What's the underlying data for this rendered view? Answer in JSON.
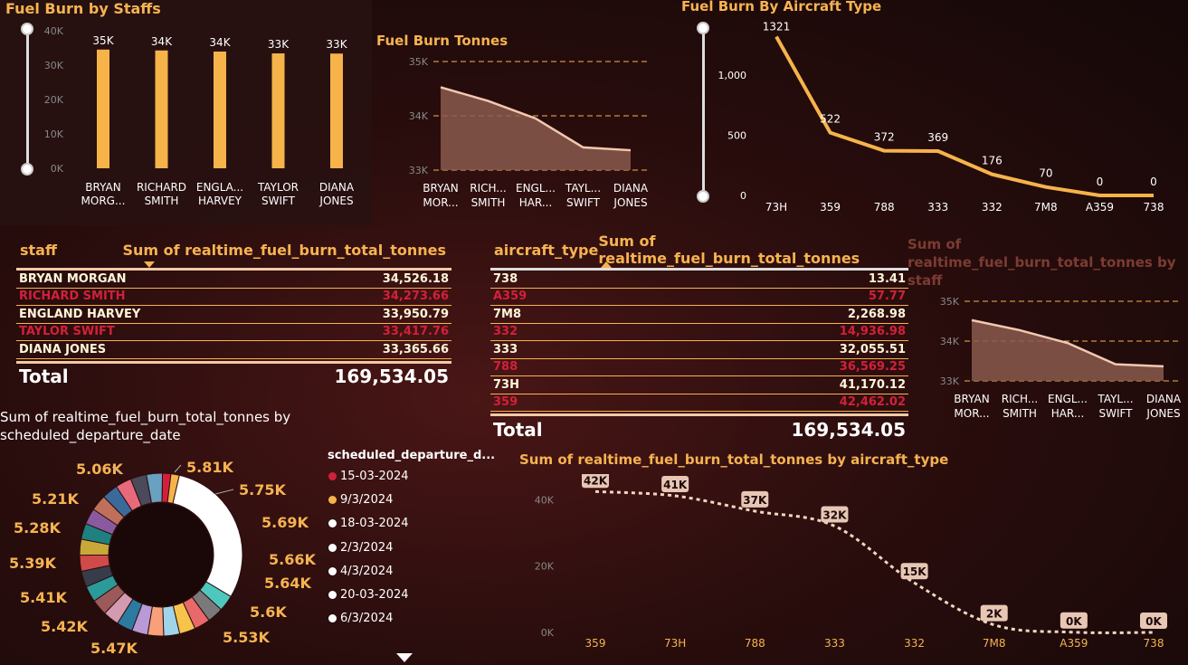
{
  "staff_chart": {
    "title": "Fuel Burn by Staffs",
    "yaxis_ticks": [
      "40K",
      "30K",
      "20K",
      "10K",
      "0K"
    ],
    "chart_data": {
      "type": "bar",
      "title": "Fuel Burn by Staffs",
      "categories": [
        "BRYAN MORG...",
        "RICHARD SMITH",
        "ENGLA... HARVEY",
        "TAYLOR SWIFT",
        "DIANA JONES"
      ],
      "values": [
        34526.18,
        34273.66,
        33950.79,
        33417.76,
        33365.66
      ],
      "data_labels": [
        "35K",
        "34K",
        "34K",
        "33K",
        "33K"
      ],
      "ylim": [
        0,
        40000
      ],
      "colors": [
        "#f6b34a"
      ]
    },
    "category_lines": [
      [
        "BRYAN",
        "MORG..."
      ],
      [
        "RICHARD",
        "SMITH"
      ],
      [
        "ENGLA...",
        "HARVEY"
      ],
      [
        "TAYLOR",
        "SWIFT"
      ],
      [
        "DIANA",
        "JONES"
      ]
    ]
  },
  "tonnes_chart": {
    "title": "Fuel Burn Tonnes",
    "yaxis_ticks": [
      "35K",
      "34K",
      "33K"
    ],
    "chart_data": {
      "type": "area",
      "title": "Fuel Burn Tonnes",
      "categories": [
        "BRYAN MOR...",
        "RICH... SMITH",
        "ENGL... HAR...",
        "TAYL... SWIFT",
        "DIANA JONES"
      ],
      "values": [
        34526.18,
        34273.66,
        33950.79,
        33417.76,
        33365.66
      ],
      "ylim": [
        33000,
        35000
      ]
    },
    "category_lines": [
      [
        "BRYAN",
        "MOR..."
      ],
      [
        "RICH...",
        "SMITH"
      ],
      [
        "ENGL...",
        "HAR..."
      ],
      [
        "TAYL...",
        "SWIFT"
      ],
      [
        "DIANA",
        "JONES"
      ]
    ]
  },
  "aircraft_chart": {
    "title": "Fuel Burn By Aircraft Type",
    "yaxis_ticks": [
      "1,000",
      "500",
      "0"
    ],
    "chart_data": {
      "type": "line",
      "title": "Fuel Burn By Aircraft Type",
      "categories": [
        "73H",
        "359",
        "788",
        "333",
        "332",
        "7M8",
        "A359",
        "738"
      ],
      "values": [
        1321,
        522,
        372,
        369,
        176,
        70,
        0,
        0
      ],
      "data_labels": [
        "1321",
        "522",
        "372",
        "369",
        "176",
        "70",
        "0",
        "0"
      ],
      "ylim": [
        0,
        1400
      ]
    }
  },
  "staff_table": {
    "col1": "staff",
    "col2": "Sum of realtime_fuel_burn_total_tonnes",
    "rows": [
      {
        "name": "BRYAN MORGAN",
        "value": "34,526.18"
      },
      {
        "name": "RICHARD SMITH",
        "value": "34,273.66"
      },
      {
        "name": "ENGLAND HARVEY",
        "value": "33,950.79"
      },
      {
        "name": "TAYLOR SWIFT",
        "value": "33,417.76"
      },
      {
        "name": "DIANA JONES",
        "value": "33,365.66"
      }
    ],
    "total_label": "Total",
    "total_value": "169,534.05"
  },
  "aircraft_table": {
    "col1": "aircraft_type",
    "col2": "Sum of realtime_fuel_burn_total_tonnes",
    "rows": [
      {
        "name": "738",
        "value": "13.41"
      },
      {
        "name": "A359",
        "value": "57.77"
      },
      {
        "name": "7M8",
        "value": "2,268.98"
      },
      {
        "name": "332",
        "value": "14,936.98"
      },
      {
        "name": "333",
        "value": "32,055.51"
      },
      {
        "name": "788",
        "value": "36,569.25"
      },
      {
        "name": "73H",
        "value": "41,170.12"
      },
      {
        "name": "359",
        "value": "42,462.02"
      }
    ],
    "total_label": "Total",
    "total_value": "169,534.05"
  },
  "staff_area_chart": {
    "title": "Sum of realtime_fuel_burn_total_tonnes by staff",
    "title_lines": [
      "Sum of",
      "realtime_fuel_burn_total_tonnes by",
      "staff"
    ],
    "yaxis_ticks": [
      "35K",
      "34K",
      "33K"
    ],
    "chart_data": {
      "type": "area",
      "title": "Sum of realtime_fuel_burn_total_tonnes by staff",
      "categories": [
        "BRYAN MOR...",
        "RICH... SMITH",
        "ENGL... HAR...",
        "TAYL... SWIFT",
        "DIANA JONES"
      ],
      "values": [
        34526.18,
        34273.66,
        33950.79,
        33417.76,
        33365.66
      ],
      "ylim": [
        33000,
        35000
      ]
    },
    "category_lines": [
      [
        "BRYAN",
        "MOR..."
      ],
      [
        "RICH...",
        "SMITH"
      ],
      [
        "ENGL...",
        "HAR..."
      ],
      [
        "TAYL...",
        "SWIFT"
      ],
      [
        "DIANA",
        "JONES"
      ]
    ]
  },
  "donut_chart": {
    "title_lines": [
      "Sum of realtime_fuel_burn_total_tonnes by",
      "scheduled_departure_date"
    ],
    "legend_title": "scheduled_departure_d...",
    "legend": [
      {
        "label": "15-03-2024",
        "color": "#d3203a"
      },
      {
        "label": "9/3/2024",
        "color": "#f6b34a"
      },
      {
        "label": "18-03-2024",
        "color": "#ffffff"
      },
      {
        "label": "2/3/2024",
        "color": "#ffffff"
      },
      {
        "label": "4/3/2024",
        "color": "#ffffff"
      },
      {
        "label": "20-03-2024",
        "color": "#ffffff"
      },
      {
        "label": "6/3/2024",
        "color": "#ffffff"
      }
    ],
    "labels_right": [
      "5.81K",
      "5.75K",
      "5.69K",
      "5.66K",
      "5.64K",
      "5.6K",
      "5.53K"
    ],
    "labels_left": [
      "5.06K",
      "5.21K",
      "5.28K",
      "5.39K",
      "5.41K",
      "5.42K",
      "5.47K"
    ],
    "chart_data": {
      "type": "pie",
      "title": "Sum of realtime_fuel_burn_total_tonnes by scheduled_departure_date",
      "values_shown": [
        5.81,
        5.75,
        5.69,
        5.66,
        5.64,
        5.6,
        5.53,
        5.47,
        5.42,
        5.41,
        5.39,
        5.28,
        5.21,
        5.06
      ],
      "unit": "K",
      "highlight_white_fraction": 0.3
    }
  },
  "bottom_line_chart": {
    "title": "Sum of realtime_fuel_burn_total_tonnes by aircraft_type",
    "yaxis_ticks": [
      "40K",
      "20K",
      "0K"
    ],
    "chart_data": {
      "type": "line",
      "title": "Sum of realtime_fuel_burn_total_tonnes by aircraft_type",
      "categories": [
        "359",
        "73H",
        "788",
        "333",
        "332",
        "7M8",
        "A359",
        "738"
      ],
      "values": [
        42462.02,
        41170.12,
        36569.25,
        32055.51,
        14936.98,
        2268.98,
        57.77,
        13.41
      ],
      "data_labels": [
        "42K",
        "41K",
        "37K",
        "32K",
        "15K",
        "2K",
        "0K",
        "0K"
      ],
      "ylim": [
        0,
        45000
      ]
    }
  }
}
